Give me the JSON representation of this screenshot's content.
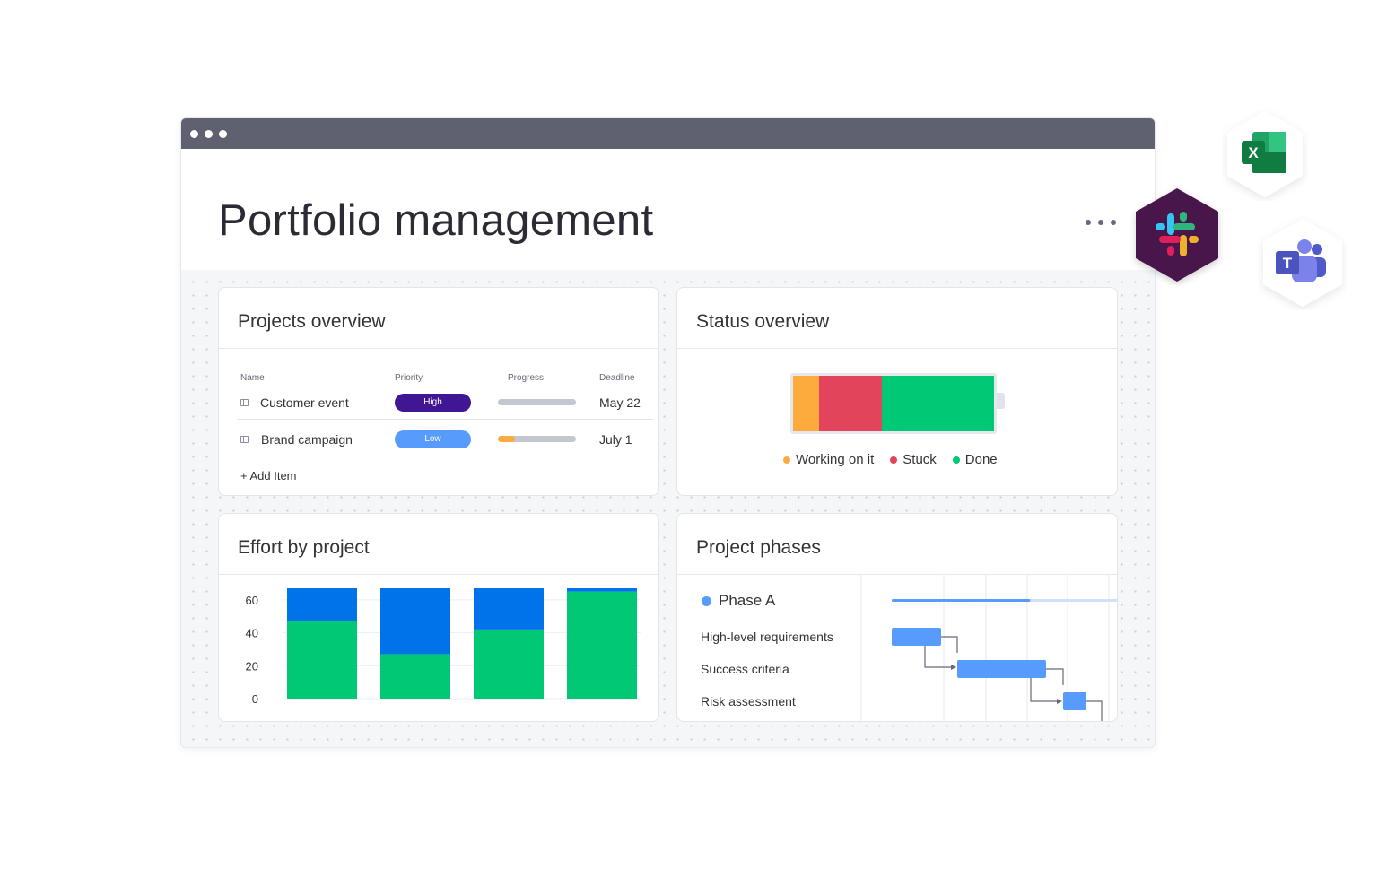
{
  "page": {
    "title": "Portfolio management"
  },
  "projects_overview": {
    "title": "Projects overview",
    "columns": [
      "Name",
      "Priority",
      "Progress",
      "Deadline"
    ],
    "rows": [
      {
        "name": "Customer event",
        "priority": "High",
        "priority_color": "#401694",
        "progress": 0.0,
        "deadline": "May 22"
      },
      {
        "name": "Brand campaign",
        "priority": "Low",
        "priority_color": "#579bfc",
        "progress": 0.22,
        "deadline": "July 1"
      }
    ],
    "add_item": "+ Add Item",
    "progress_color": "#fdab3d"
  },
  "status_overview": {
    "title": "Status overview",
    "segments": [
      {
        "label": "Working on it",
        "share": 0.13,
        "color": "#fdab3d"
      },
      {
        "label": "Stuck",
        "share": 0.31,
        "color": "#e2445c"
      },
      {
        "label": "Done",
        "share": 0.56,
        "color": "#00c875"
      }
    ]
  },
  "effort_by_project": {
    "title": "Effort by project"
  },
  "chart_data": {
    "type": "bar",
    "stacked": true,
    "title": "Effort by project",
    "categories": [
      "",
      "",
      "",
      ""
    ],
    "series": [
      {
        "values": [
          47,
          27,
          42,
          65
        ],
        "color": "#00c875"
      },
      {
        "values": [
          20,
          40,
          25,
          2
        ],
        "color": "#0073ea"
      }
    ],
    "yticks": [
      60,
      40,
      20,
      0
    ],
    "ylim": [
      0,
      67
    ],
    "grid": true
  },
  "project_phases": {
    "title": "Project phases",
    "phase": "Phase A",
    "tasks": [
      "High-level requirements",
      "Success criteria",
      "Risk assessment"
    ],
    "phase_progress": 0.61,
    "color": "#579bfc"
  },
  "integrations": [
    {
      "name": "Excel",
      "icon": "excel-icon",
      "color": "#1d6f42"
    },
    {
      "name": "Slack",
      "icon": "slack-icon",
      "color": "#4a154b"
    },
    {
      "name": "Teams",
      "icon": "teams-icon",
      "color": "#5059c9"
    }
  ]
}
